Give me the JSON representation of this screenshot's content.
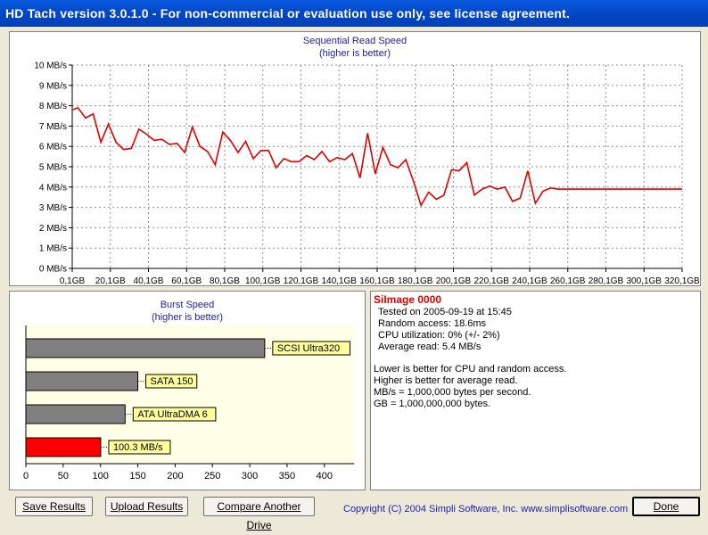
{
  "window": {
    "title": "HD Tach version 3.0.1.0  - For non-commercial or evaluation use only, see license agreement."
  },
  "sequential": {
    "title": "Sequential Read Speed",
    "subtitle": "(higher is better)"
  },
  "chart_data": [
    {
      "type": "line",
      "title": "Sequential Read Speed",
      "subtitle": "(higher is better)",
      "ylabel": "",
      "xlabel": "",
      "ylim": [
        0,
        10
      ],
      "y_ticks": [
        "0 MB/s",
        "1 MB/s",
        "2 MB/s",
        "3 MB/s",
        "4 MB/s",
        "5 MB/s",
        "6 MB/s",
        "7 MB/s",
        "8 MB/s",
        "9 MB/s",
        "10 MB/s"
      ],
      "x_ticks": [
        "0,1GB",
        "20,1GB",
        "40,1GB",
        "60,1GB",
        "80,1GB",
        "100,1GB",
        "120,1GB",
        "140,1GB",
        "160,1GB",
        "180,1GB",
        "200,1GB",
        "220,1GB",
        "240,1GB",
        "260,1GB",
        "280,1GB",
        "300,1GB",
        "320,1GB"
      ],
      "xlim": [
        0,
        320
      ],
      "grid": true,
      "color": "#e00000",
      "x": [
        0,
        3,
        7,
        11,
        15,
        19,
        23,
        27,
        31,
        35,
        39,
        43,
        47,
        51,
        55,
        59,
        63,
        67,
        71,
        75,
        79,
        83,
        87,
        91,
        95,
        99,
        103,
        107,
        111,
        115,
        119,
        123,
        127,
        131,
        135,
        139,
        143,
        147,
        151,
        155,
        159,
        163,
        167,
        171,
        175,
        179,
        183,
        187,
        191,
        195,
        199,
        203,
        207,
        211,
        215,
        219,
        223,
        227,
        231,
        235,
        239,
        243,
        247,
        251,
        255,
        259,
        263,
        267,
        271,
        275,
        279,
        283,
        287,
        291,
        295,
        299,
        303,
        307,
        311,
        315,
        319,
        320
      ],
      "y": [
        7.8,
        7.9,
        7.4,
        7.6,
        6.2,
        7.1,
        6.2,
        5.85,
        5.9,
        6.85,
        6.6,
        6.3,
        6.35,
        6.1,
        6.15,
        5.7,
        6.95,
        6.0,
        5.75,
        5.1,
        6.7,
        6.3,
        5.7,
        6.25,
        5.4,
        5.8,
        5.8,
        4.95,
        5.4,
        5.25,
        5.25,
        5.55,
        5.35,
        5.75,
        5.25,
        5.45,
        5.35,
        5.65,
        4.45,
        6.65,
        4.65,
        5.95,
        5.1,
        4.95,
        5.35,
        4.3,
        3.1,
        3.75,
        3.4,
        3.6,
        4.85,
        4.8,
        5.2,
        3.6,
        3.9,
        4.05,
        3.9,
        4.0,
        3.3,
        3.45,
        4.8,
        3.2,
        3.8,
        3.95,
        3.9,
        3.9,
        3.9,
        3.9,
        3.9,
        3.9,
        3.9,
        3.9,
        3.9,
        3.9,
        3.9,
        3.9,
        3.9,
        3.9,
        3.9,
        3.9,
        3.9,
        3.9
      ]
    },
    {
      "type": "bar",
      "orientation": "horizontal",
      "title": "Burst Speed",
      "subtitle": "(higher is better)",
      "xlim": [
        0,
        440
      ],
      "x_ticks": [
        "0",
        "50",
        "100",
        "150",
        "200",
        "250",
        "300",
        "350",
        "400"
      ],
      "categories": [
        "SCSI Ultra320",
        "SATA 150",
        "ATA UltraDMA 6",
        "100.3 MB/s"
      ],
      "values": [
        320,
        150,
        133,
        100.3
      ],
      "colors": [
        "#808080",
        "#808080",
        "#808080",
        "#ff0000"
      ]
    }
  ],
  "burst": {
    "title": "Burst Speed",
    "subtitle": "(higher is better)"
  },
  "result": {
    "drive": "SiImage 0000",
    "tested": "Tested on 2005-09-19 at 15:45",
    "random_access": "Random access: 18.6ms",
    "cpu": "CPU utilization: 0% (+/- 2%)",
    "average": "Average read: 5.4 MB/s",
    "notes": [
      "Lower is better for CPU and random access.",
      "Higher is better for average read.",
      "MB/s = 1,000,000 bytes per second.",
      "GB = 1,000,000,000 bytes."
    ]
  },
  "buttons": {
    "save": "Save Results",
    "upload": "Upload Results",
    "compare": "Compare Another Drive",
    "done": "Done"
  },
  "footer": {
    "copyright": "Copyright (C) 2004 Simpli Software, Inc. www.simplisoftware.com"
  }
}
